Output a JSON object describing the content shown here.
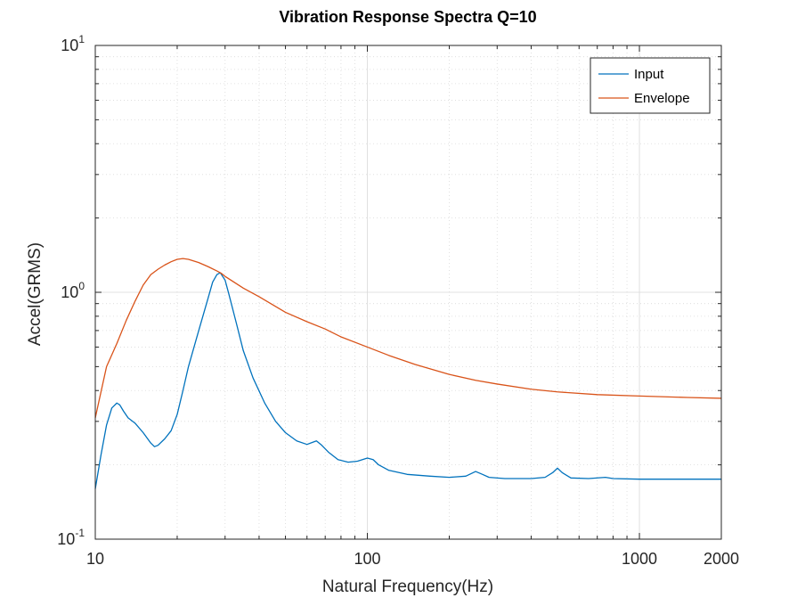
{
  "chart_data": {
    "type": "line",
    "title": "Vibration Response Spectra Q=10",
    "xlabel": "Natural Frequency(Hz)",
    "ylabel": "Accel(GRMS)",
    "xscale": "log",
    "yscale": "log",
    "xlim": [
      10,
      2000
    ],
    "ylim": [
      0.1,
      10
    ],
    "grid": true,
    "legend_position": "top-right",
    "x_ticks": [
      {
        "value": 10,
        "label": "10"
      },
      {
        "value": 100,
        "label": "100"
      },
      {
        "value": 1000,
        "label": "1000"
      },
      {
        "value": 2000,
        "label": "2000"
      }
    ],
    "y_ticks": [
      {
        "value": 0.1,
        "base": "10",
        "exp": "-1"
      },
      {
        "value": 1,
        "base": "10",
        "exp": "0"
      },
      {
        "value": 10,
        "base": "10",
        "exp": "1"
      }
    ],
    "colors": {
      "input": "#0072bd",
      "envelope": "#d95319",
      "axis": "#262626",
      "grid": "#d9d9d9"
    },
    "series": [
      {
        "name": "Input",
        "color": "#0072bd",
        "x": [
          10,
          10.5,
          11,
          11.5,
          12,
          12.3,
          12.7,
          13.2,
          14,
          15,
          16,
          16.5,
          17,
          18,
          19,
          20,
          21,
          22,
          24,
          26,
          27,
          28,
          28.8,
          30,
          31,
          33,
          35,
          38,
          42,
          46,
          50,
          55,
          60,
          63,
          65,
          68,
          72,
          78,
          85,
          92,
          100,
          105,
          110,
          120,
          140,
          170,
          200,
          230,
          250,
          265,
          280,
          320,
          400,
          450,
          480,
          500,
          520,
          560,
          650,
          750,
          800,
          1000,
          1300,
          1600,
          2000
        ],
        "y": [
          0.16,
          0.22,
          0.29,
          0.34,
          0.356,
          0.35,
          0.33,
          0.31,
          0.295,
          0.27,
          0.245,
          0.237,
          0.24,
          0.255,
          0.275,
          0.32,
          0.4,
          0.5,
          0.7,
          0.95,
          1.1,
          1.18,
          1.2,
          1.12,
          0.98,
          0.75,
          0.58,
          0.45,
          0.355,
          0.3,
          0.27,
          0.25,
          0.242,
          0.247,
          0.25,
          0.24,
          0.225,
          0.21,
          0.205,
          0.207,
          0.213,
          0.21,
          0.2,
          0.19,
          0.183,
          0.18,
          0.178,
          0.18,
          0.188,
          0.183,
          0.178,
          0.176,
          0.176,
          0.178,
          0.186,
          0.194,
          0.186,
          0.177,
          0.176,
          0.178,
          0.176,
          0.175,
          0.175,
          0.175,
          0.175
        ]
      },
      {
        "name": "Envelope",
        "color": "#d95319",
        "x": [
          10,
          11,
          12,
          13,
          14,
          15,
          16,
          17,
          18,
          19,
          20,
          21,
          22,
          24,
          26,
          28,
          29,
          30,
          35,
          40,
          50,
          60,
          70,
          80,
          100,
          120,
          150,
          200,
          250,
          300,
          400,
          500,
          700,
          1000,
          1500,
          2000
        ],
        "y": [
          0.31,
          0.5,
          0.62,
          0.77,
          0.92,
          1.07,
          1.18,
          1.24,
          1.29,
          1.33,
          1.36,
          1.37,
          1.36,
          1.32,
          1.27,
          1.22,
          1.195,
          1.16,
          1.04,
          0.96,
          0.83,
          0.76,
          0.71,
          0.66,
          0.6,
          0.555,
          0.51,
          0.465,
          0.44,
          0.425,
          0.405,
          0.395,
          0.385,
          0.38,
          0.375,
          0.372
        ]
      }
    ]
  }
}
